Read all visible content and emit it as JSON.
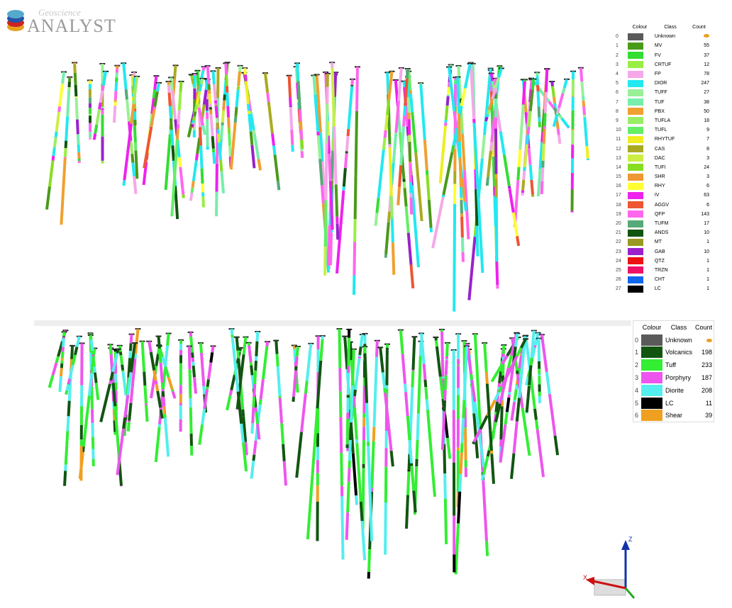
{
  "logo": {
    "top": "Geoscience",
    "bottom": "ANALYST"
  },
  "legend_detailed": {
    "headers": [
      "Colour",
      "Class",
      "Count"
    ],
    "rows": [
      {
        "index": "0",
        "class": "Unknown",
        "count": null,
        "color": "#5a5a5a"
      },
      {
        "index": "1",
        "class": "MV",
        "count": "55",
        "color": "#4a9a1a"
      },
      {
        "index": "2",
        "class": "FV",
        "count": "37",
        "color": "#33dd33"
      },
      {
        "index": "3",
        "class": "CRTUF",
        "count": "12",
        "color": "#99ee44"
      },
      {
        "index": "4",
        "class": "FP",
        "count": "78",
        "color": "#f5a8e8"
      },
      {
        "index": "5",
        "class": "DIOR",
        "count": "247",
        "color": "#22e8f0"
      },
      {
        "index": "6",
        "class": "TUFF",
        "count": "27",
        "color": "#99f099"
      },
      {
        "index": "7",
        "class": "TUF",
        "count": "38",
        "color": "#77eeaa"
      },
      {
        "index": "8",
        "class": "PBX",
        "count": "50",
        "color": "#f0a030"
      },
      {
        "index": "9",
        "class": "TUFLA",
        "count": "18",
        "color": "#99ee66"
      },
      {
        "index": "10",
        "class": "TUFL",
        "count": "9",
        "color": "#66ee66"
      },
      {
        "index": "11",
        "class": "RHYTUF",
        "count": "7",
        "color": "#eeee22"
      },
      {
        "index": "12",
        "class": "CAS",
        "count": "8",
        "color": "#aaaa22"
      },
      {
        "index": "13",
        "class": "DAC",
        "count": "3",
        "color": "#ccee44"
      },
      {
        "index": "14",
        "class": "TUFI",
        "count": "24",
        "color": "#88dd22"
      },
      {
        "index": "15",
        "class": "SHR",
        "count": "3",
        "color": "#ee9933"
      },
      {
        "index": "16",
        "class": "RHY",
        "count": "6",
        "color": "#ffff33"
      },
      {
        "index": "17",
        "class": "IV",
        "count": "63",
        "color": "#ee22ee"
      },
      {
        "index": "18",
        "class": "AGGV",
        "count": "6",
        "color": "#ee5533"
      },
      {
        "index": "19",
        "class": "QFP",
        "count": "143",
        "color": "#ff66ee"
      },
      {
        "index": "20",
        "class": "TUFM",
        "count": "17",
        "color": "#55aa77"
      },
      {
        "index": "21",
        "class": "ANDS",
        "count": "10",
        "color": "#115511"
      },
      {
        "index": "22",
        "class": "MT",
        "count": "1",
        "color": "#999922"
      },
      {
        "index": "23",
        "class": "GAB",
        "count": "10",
        "color": "#9922cc"
      },
      {
        "index": "24",
        "class": "QTZ",
        "count": "1",
        "color": "#ee1111"
      },
      {
        "index": "25",
        "class": "TRZN",
        "count": "1",
        "color": "#ee1166"
      },
      {
        "index": "26",
        "class": "CHT",
        "count": "1",
        "color": "#1166ee"
      },
      {
        "index": "27",
        "class": "LC",
        "count": "1",
        "color": "#000000"
      }
    ]
  },
  "legend_grouped": {
    "headers": [
      "Colour",
      "Class",
      "Count"
    ],
    "rows": [
      {
        "index": "0",
        "class": "Unknown",
        "count": null,
        "color": "#5a5a5a"
      },
      {
        "index": "1",
        "class": "Volcanics",
        "count": "198",
        "color": "#115511"
      },
      {
        "index": "2",
        "class": "Tuff",
        "count": "233",
        "color": "#33ee33"
      },
      {
        "index": "3",
        "class": "Porphyry",
        "count": "187",
        "color": "#ee55ee"
      },
      {
        "index": "4",
        "class": "Diorite",
        "count": "208",
        "color": "#55eeee"
      },
      {
        "index": "5",
        "class": "LC",
        "count": "11",
        "color": "#000000"
      },
      {
        "index": "6",
        "class": "Shear",
        "count": "39",
        "color": "#f0a020"
      }
    ]
  },
  "axes": {
    "z": "Z",
    "x": "X"
  }
}
